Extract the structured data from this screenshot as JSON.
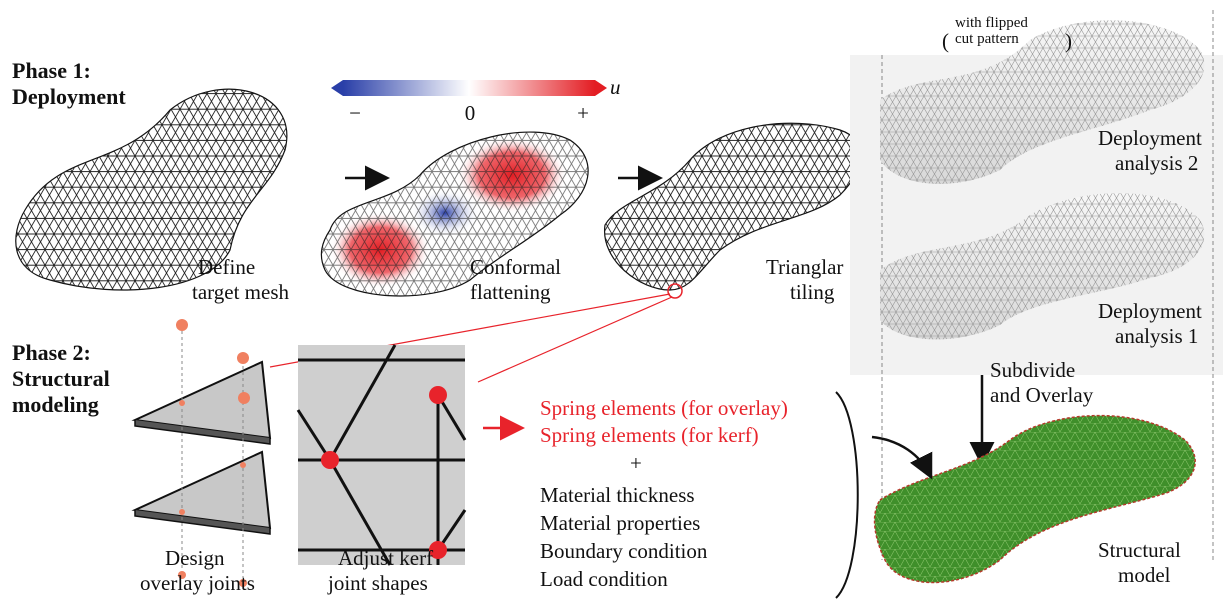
{
  "phase1": [
    "Phase 1:",
    "Deployment"
  ],
  "phase2": [
    "Phase 2:",
    "Structural",
    "modeling"
  ],
  "colorbar": {
    "symbol": "u",
    "labels": [
      "−",
      "0",
      "+"
    ]
  },
  "steps": {
    "define_mesh": [
      "Define",
      "target mesh"
    ],
    "conformal": [
      "Conformal",
      "flattening"
    ],
    "tiling": [
      "Trianglar",
      "tiling"
    ],
    "note": [
      "with flipped",
      "cut pattern"
    ],
    "analysis2": [
      "Deployment",
      "analysis 2"
    ],
    "analysis1": [
      "Deployment",
      "analysis 1"
    ],
    "subdivide": [
      "Subdivide",
      "and Overlay"
    ],
    "overlay": [
      "Design",
      "overlay joints"
    ],
    "kerf": [
      "Adjust kerf",
      "joint shapes"
    ],
    "structural": [
      "Structural",
      "model"
    ]
  },
  "springs": [
    "Spring elements (for overlay)",
    "Spring elements (for kerf)"
  ],
  "plus": "+",
  "inputs": [
    "Material thickness",
    "Material properties",
    "Boundary condition",
    "Load condition"
  ]
}
